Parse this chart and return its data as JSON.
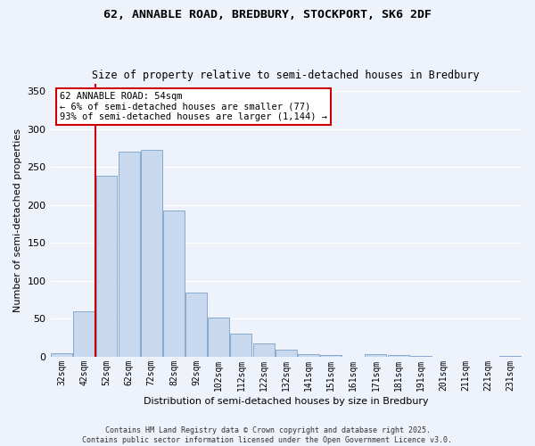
{
  "title1": "62, ANNABLE ROAD, BREDBURY, STOCKPORT, SK6 2DF",
  "title2": "Size of property relative to semi-detached houses in Bredbury",
  "xlabel": "Distribution of semi-detached houses by size in Bredbury",
  "ylabel": "Number of semi-detached properties",
  "annotation_title": "62 ANNABLE ROAD: 54sqm",
  "annotation_line1": "← 6% of semi-detached houses are smaller (77)",
  "annotation_line2": "93% of semi-detached houses are larger (1,144) →",
  "bar_labels": [
    "32sqm",
    "42sqm",
    "52sqm",
    "62sqm",
    "72sqm",
    "82sqm",
    "92sqm",
    "102sqm",
    "112sqm",
    "122sqm",
    "132sqm",
    "141sqm",
    "151sqm",
    "161sqm",
    "171sqm",
    "181sqm",
    "191sqm",
    "201sqm",
    "211sqm",
    "221sqm",
    "231sqm"
  ],
  "bar_values": [
    5,
    60,
    239,
    270,
    272,
    193,
    85,
    52,
    30,
    18,
    9,
    4,
    2,
    0,
    3,
    2,
    1,
    0,
    0,
    0,
    1
  ],
  "bar_color": "#c8d8ee",
  "bar_edge_color": "#88aacc",
  "property_line_index": 2,
  "ylim": [
    0,
    360
  ],
  "yticks": [
    0,
    50,
    100,
    150,
    200,
    250,
    300,
    350
  ],
  "background_color": "#eef2fb",
  "grid_color": "#ffffff",
  "annotation_box_color": "#ffffff",
  "annotation_box_edge": "#cc0000",
  "property_line_color": "#cc0000",
  "footer_line1": "Contains HM Land Registry data © Crown copyright and database right 2025.",
  "footer_line2": "Contains public sector information licensed under the Open Government Licence v3.0."
}
